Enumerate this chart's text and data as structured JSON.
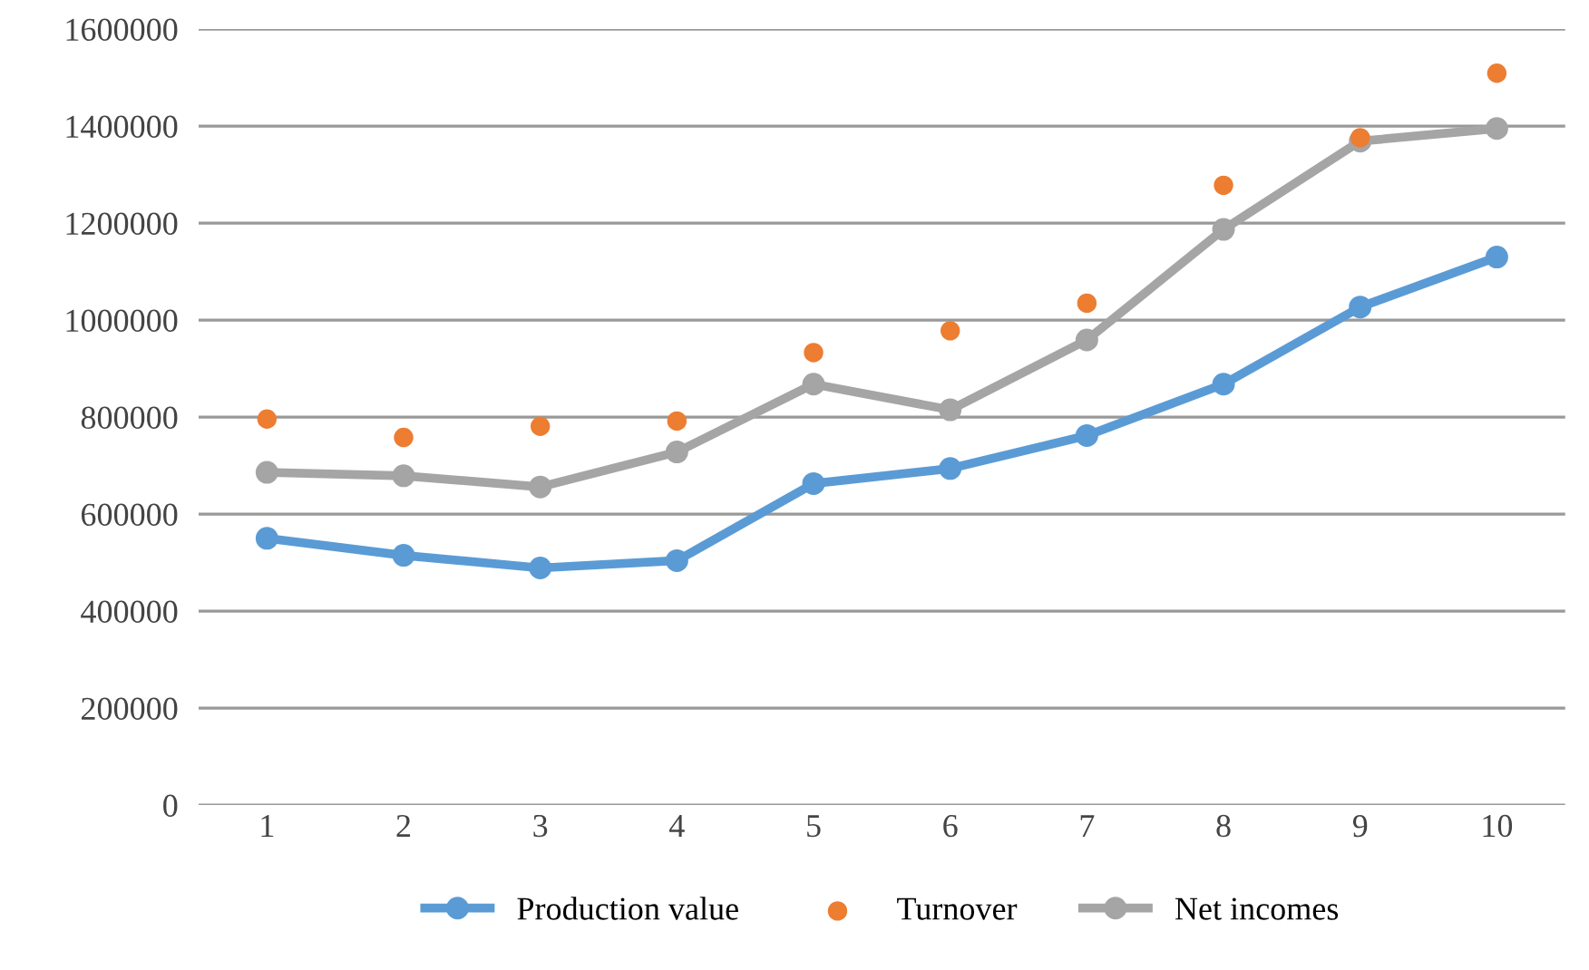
{
  "chart_data": {
    "type": "line",
    "categories": [
      "1",
      "2",
      "3",
      "4",
      "5",
      "6",
      "7",
      "8",
      "9",
      "10"
    ],
    "series": [
      {
        "name": "Production value",
        "color": "#5b9bd5",
        "values": [
          550000,
          515000,
          489000,
          504000,
          663000,
          694000,
          762000,
          868000,
          1027000,
          1130000
        ]
      },
      {
        "name": "Turnover",
        "color": "#ed7d31",
        "type": "scatter",
        "values": [
          796000,
          758000,
          781000,
          792000,
          933000,
          978000,
          1035000,
          1278000,
          1376000,
          1509000
        ]
      },
      {
        "name": "Net incomes",
        "color": "#a5a5a5",
        "values": [
          686000,
          679000,
          656000,
          728000,
          868000,
          815000,
          959000,
          1187000,
          1369000,
          1395000
        ]
      }
    ],
    "ylim": [
      0,
      1600000
    ],
    "yticks": [
      0,
      200000,
      400000,
      600000,
      800000,
      1000000,
      1200000,
      1400000,
      1600000
    ],
    "grid": "y",
    "legend": "bottom",
    "marker": "circle"
  }
}
